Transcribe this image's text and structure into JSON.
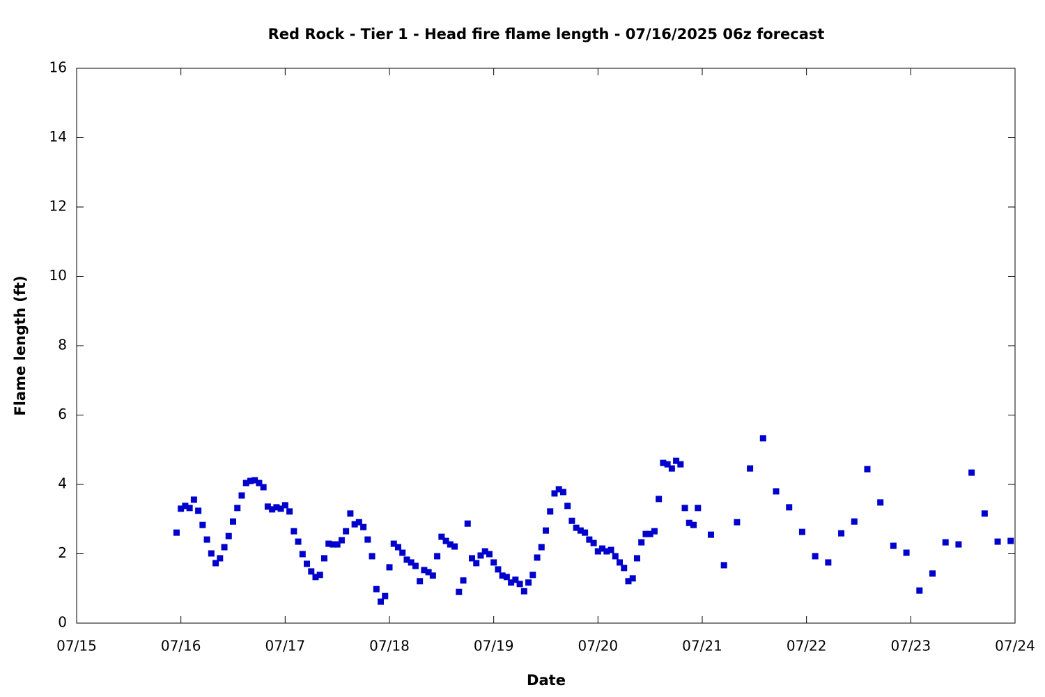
{
  "chart_data": {
    "type": "scatter",
    "title": "Red Rock - Tier 1 - Head fire flame length - 07/16/2025 06z forecast",
    "x_label": "Date",
    "y_label": "Flame length (ft)",
    "color": "#0000cc",
    "xlim": [
      0,
      216
    ],
    "xticks": [
      {
        "value": 0,
        "label": "07/15"
      },
      {
        "value": 24,
        "label": "07/16"
      },
      {
        "value": 48,
        "label": "07/17"
      },
      {
        "value": 72,
        "label": "07/18"
      },
      {
        "value": 96,
        "label": "07/19"
      },
      {
        "value": 120,
        "label": "07/20"
      },
      {
        "value": 144,
        "label": "07/21"
      },
      {
        "value": 168,
        "label": "07/22"
      },
      {
        "value": 192,
        "label": "07/23"
      },
      {
        "value": 216,
        "label": "07/24"
      }
    ],
    "ylim": [
      0,
      16
    ],
    "yticks": [
      0,
      2,
      4,
      6,
      8,
      10,
      12,
      14,
      16
    ],
    "x": [
      23,
      24,
      25,
      26,
      27,
      28,
      29,
      30,
      31,
      32,
      33,
      34,
      35,
      36,
      37,
      38,
      39,
      40,
      41,
      42,
      43,
      44,
      45,
      46,
      47,
      48,
      49,
      50,
      51,
      52,
      53,
      54,
      55,
      56,
      57,
      58,
      59,
      60,
      61,
      62,
      63,
      64,
      65,
      66,
      67,
      68,
      69,
      70,
      71,
      72,
      73,
      74,
      75,
      76,
      77,
      78,
      79,
      80,
      81,
      82,
      83,
      84,
      85,
      86,
      87,
      88,
      89,
      90,
      91,
      92,
      93,
      94,
      95,
      96,
      97,
      98,
      99,
      100,
      101,
      102,
      103,
      104,
      105,
      106,
      107,
      108,
      109,
      110,
      111,
      112,
      113,
      114,
      115,
      116,
      117,
      118,
      119,
      120,
      121,
      122,
      123,
      124,
      125,
      126,
      127,
      128,
      129,
      130,
      131,
      132,
      133,
      134,
      135,
      136,
      137,
      138,
      139,
      140,
      141,
      142,
      143,
      146,
      149,
      152,
      155,
      158,
      161,
      164,
      167,
      170,
      173,
      176,
      179,
      182,
      185,
      188,
      191,
      194,
      197,
      200,
      203,
      206,
      209,
      212,
      215
    ],
    "values": [
      2.61,
      3.3,
      3.38,
      3.32,
      3.56,
      3.24,
      2.83,
      2.41,
      2.01,
      1.73,
      1.87,
      2.19,
      2.51,
      2.93,
      3.32,
      3.68,
      4.04,
      4.1,
      4.12,
      4.04,
      3.92,
      3.36,
      3.28,
      3.34,
      3.3,
      3.4,
      3.22,
      2.65,
      2.35,
      1.99,
      1.71,
      1.49,
      1.33,
      1.39,
      1.87,
      2.29,
      2.27,
      2.27,
      2.39,
      2.65,
      3.16,
      2.85,
      2.91,
      2.77,
      2.41,
      1.93,
      0.98,
      0.62,
      0.78,
      1.61,
      2.29,
      2.19,
      2.03,
      1.83,
      1.75,
      1.65,
      1.21,
      1.53,
      1.47,
      1.37,
      1.93,
      2.49,
      2.37,
      2.27,
      2.21,
      0.9,
      1.23,
      2.87,
      1.87,
      1.73,
      1.95,
      2.07,
      1.99,
      1.75,
      1.55,
      1.37,
      1.33,
      1.17,
      1.25,
      1.13,
      0.92,
      1.17,
      1.39,
      1.89,
      2.19,
      2.67,
      3.22,
      3.74,
      3.86,
      3.78,
      3.38,
      2.95,
      2.75,
      2.67,
      2.61,
      2.41,
      2.31,
      2.07,
      2.15,
      2.07,
      2.11,
      1.93,
      1.75,
      1.59,
      1.21,
      1.29,
      1.87,
      2.33,
      2.57,
      2.57,
      2.65,
      3.58,
      4.62,
      4.58,
      4.46,
      4.68,
      4.58,
      3.32,
      2.89,
      2.83,
      3.32,
      2.55,
      1.67,
      2.91,
      4.46,
      5.33,
      3.8,
      3.34,
      2.63,
      1.93,
      1.75,
      2.59,
      2.93,
      4.44,
      3.48,
      2.23,
      2.03,
      0.94,
      1.43,
      2.33,
      2.27,
      4.34,
      3.16,
      2.35,
      2.37
    ]
  }
}
